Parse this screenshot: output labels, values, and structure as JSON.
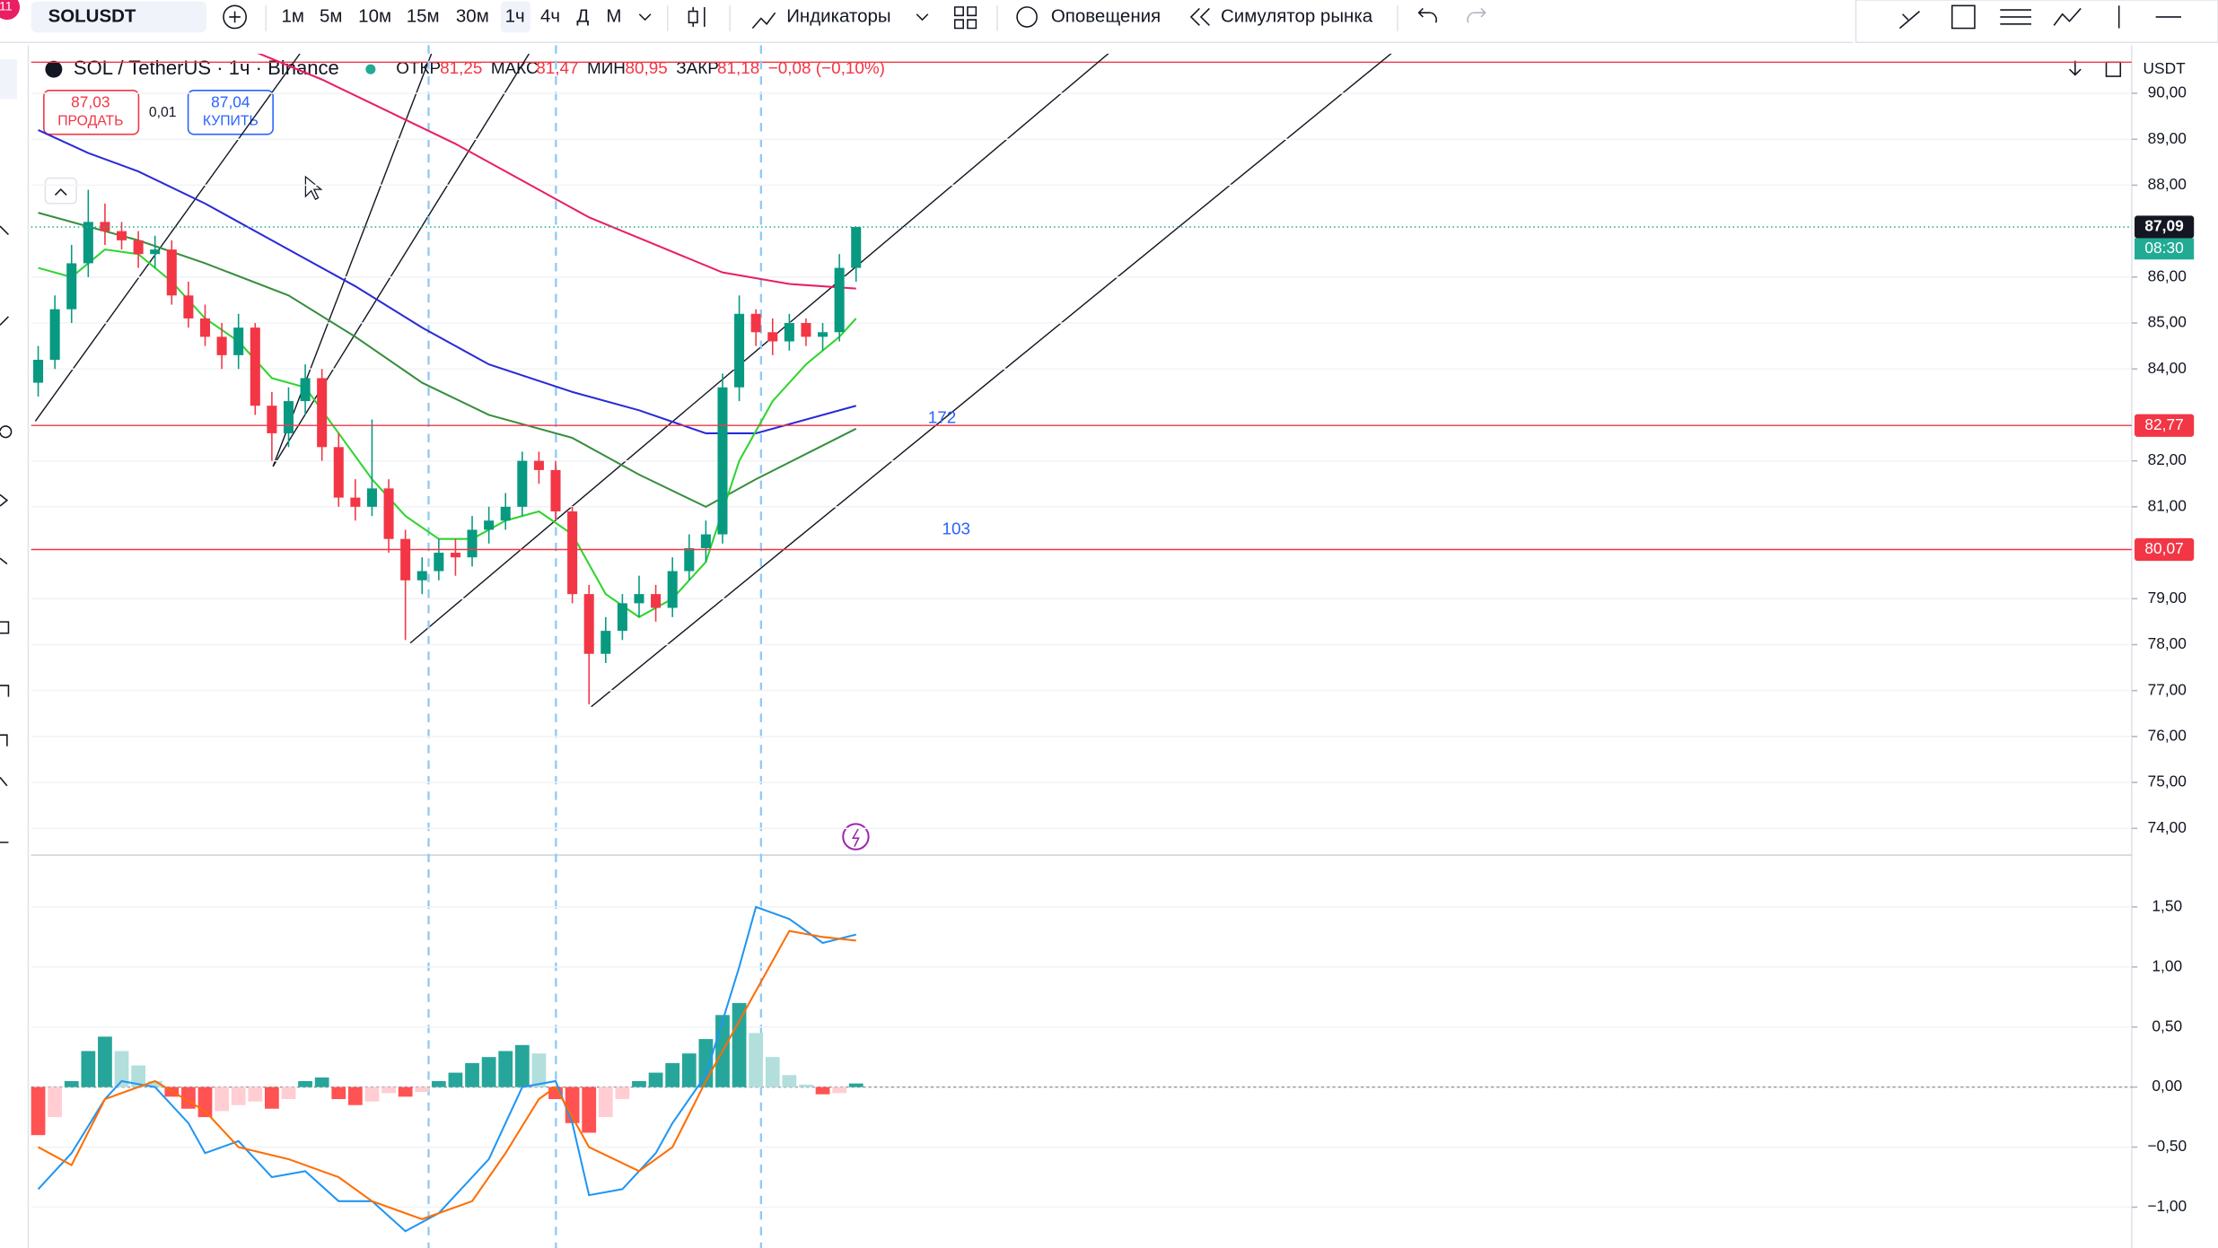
{
  "toolbar": {
    "badge": "11",
    "symbol": "SOLUSDT",
    "intervals": [
      "1м",
      "5м",
      "10м",
      "15м",
      "30м",
      "1ч",
      "4ч",
      "Д",
      "М"
    ],
    "indicators": "Индикаторы",
    "alerts": "Оповещения",
    "replay": "Симулятор рынка"
  },
  "legend": {
    "title": "SOL / TetherUS · 1ч · Binance",
    "fields": [
      {
        "label": "ОТКР",
        "value": "81,25"
      },
      {
        "label": "МАКС",
        "value": "81,47"
      },
      {
        "label": "МИН",
        "value": "80,95"
      },
      {
        "label": "ЗАКР",
        "value": "81,18"
      }
    ],
    "change": "−0,08 (−0,10%)"
  },
  "trade": {
    "sell_price": "87,03",
    "sell": "ПРОДАТЬ",
    "spread": "0,01",
    "buy_price": "87,04",
    "buy": "КУПИТЬ"
  },
  "currency": "USDT",
  "chart_data": [
    {
      "type": "candlestick",
      "up_color": "#089981",
      "down_color": "#f23645",
      "ylim": [
        73.45,
        90.8
      ],
      "yticks": [
        {
          "value": 90,
          "label": "90,00"
        },
        {
          "value": 89,
          "label": "89,00"
        },
        {
          "value": 88,
          "label": "88,00"
        },
        {
          "value": 86,
          "label": "86,00"
        },
        {
          "value": 85,
          "label": "85,00"
        },
        {
          "value": 84,
          "label": "84,00"
        },
        {
          "value": 82,
          "label": "82,00"
        },
        {
          "value": 81,
          "label": "81,00"
        },
        {
          "value": 79,
          "label": "79,00"
        },
        {
          "value": 78,
          "label": "78,00"
        },
        {
          "value": 77,
          "label": "77,00"
        },
        {
          "value": 76,
          "label": "76,00"
        },
        {
          "value": 75,
          "label": "75,00"
        },
        {
          "value": 74,
          "label": "74,00"
        }
      ],
      "open": [
        83.7,
        84.2,
        85.3,
        86.3,
        87.2,
        87.0,
        86.8,
        86.5,
        86.6,
        85.6,
        85.1,
        84.7,
        84.3,
        84.9,
        83.2,
        82.6,
        83.3,
        83.8,
        82.3,
        81.2,
        81.0,
        81.4,
        80.3,
        79.4,
        79.6,
        80.0,
        79.9,
        80.5,
        80.7,
        81.0,
        82.0,
        81.8,
        80.9,
        79.1,
        77.8,
        78.3,
        78.9,
        79.1,
        78.8,
        79.6,
        80.1,
        80.4,
        83.6,
        85.2,
        84.8,
        84.6,
        85.0,
        84.7,
        84.8,
        86.2
      ],
      "high": [
        84.5,
        85.6,
        86.7,
        87.9,
        87.6,
        87.2,
        87.0,
        86.9,
        86.8,
        85.9,
        85.4,
        85.0,
        85.2,
        85.0,
        83.5,
        83.6,
        84.1,
        84.0,
        82.6,
        81.6,
        82.9,
        81.6,
        80.5,
        79.9,
        80.3,
        80.3,
        80.8,
        81.0,
        81.3,
        82.2,
        82.2,
        82.0,
        81.0,
        79.3,
        78.6,
        79.1,
        79.5,
        79.3,
        79.9,
        80.4,
        80.7,
        83.9,
        85.6,
        85.3,
        85.1,
        85.2,
        85.1,
        85.0,
        86.5,
        87.1
      ],
      "low": [
        83.4,
        84.0,
        85.0,
        86.0,
        86.7,
        86.6,
        86.2,
        86.2,
        85.4,
        84.9,
        84.5,
        84.0,
        84.0,
        83.0,
        82.0,
        82.3,
        83.0,
        82.0,
        81.0,
        80.7,
        80.8,
        80.0,
        78.1,
        79.1,
        79.4,
        79.5,
        79.7,
        80.2,
        80.5,
        80.8,
        81.5,
        80.7,
        78.9,
        76.7,
        77.6,
        78.1,
        78.6,
        78.5,
        78.6,
        79.4,
        79.8,
        80.2,
        83.3,
        84.5,
        84.3,
        84.4,
        84.5,
        84.4,
        84.6,
        85.9
      ],
      "close": [
        84.2,
        85.3,
        86.3,
        87.2,
        87.0,
        86.8,
        86.5,
        86.6,
        85.6,
        85.1,
        84.7,
        84.3,
        84.9,
        83.2,
        82.6,
        83.3,
        83.8,
        82.3,
        81.2,
        81.0,
        81.4,
        80.3,
        79.4,
        79.6,
        80.0,
        79.9,
        80.5,
        80.7,
        81.0,
        82.0,
        81.8,
        80.9,
        79.1,
        77.8,
        78.3,
        78.9,
        79.1,
        78.8,
        79.6,
        80.1,
        80.4,
        83.6,
        85.2,
        84.8,
        84.6,
        85.0,
        84.7,
        84.8,
        86.2,
        87.09
      ],
      "moving_averages": [
        {
          "color": "#e91e63",
          "x": [
            13,
            17,
            21,
            25,
            29,
            33,
            37,
            41,
            45,
            49
          ],
          "values": [
            90.9,
            90.3,
            89.6,
            88.9,
            88.1,
            87.3,
            86.7,
            86.1,
            85.85,
            85.75
          ]
        },
        {
          "color": "#2a2ad8",
          "x": [
            0,
            3,
            6,
            10,
            15,
            19,
            23,
            27,
            32,
            36,
            40,
            43,
            49
          ],
          "values": [
            89.2,
            88.7,
            88.3,
            87.6,
            86.6,
            85.8,
            84.9,
            84.1,
            83.5,
            83.1,
            82.6,
            82.6,
            83.2
          ]
        },
        {
          "color": "#388e3c",
          "x": [
            0,
            6,
            10,
            15,
            19,
            23,
            27,
            32,
            36,
            40,
            43,
            49
          ],
          "values": [
            87.4,
            86.8,
            86.3,
            85.6,
            84.7,
            83.7,
            83.0,
            82.5,
            81.7,
            81.0,
            81.6,
            82.7
          ]
        },
        {
          "color": "#2ed52e",
          "x": [
            0,
            2,
            4,
            6,
            8,
            10,
            12,
            14,
            16,
            18,
            20,
            22,
            24,
            26,
            28,
            30,
            32,
            34,
            36,
            38,
            40,
            42,
            44,
            46,
            48,
            49
          ],
          "values": [
            86.2,
            86.0,
            86.6,
            86.5,
            85.9,
            85.1,
            84.6,
            83.8,
            83.6,
            82.6,
            81.6,
            80.8,
            80.3,
            80.3,
            80.7,
            80.9,
            80.4,
            79.1,
            78.6,
            79.0,
            79.8,
            82.0,
            83.3,
            84.1,
            84.7,
            85.1
          ]
        }
      ],
      "price_lines": [
        {
          "value": 82.77,
          "label": "82,77",
          "color": "#f23645"
        },
        {
          "value": 80.07,
          "label": "80,07",
          "color": "#f23645"
        }
      ],
      "last_price": {
        "value": 87.09,
        "label": "87,09",
        "countdown": "08:30",
        "color": "#22ab94"
      },
      "annotations": [
        "172",
        "103"
      ]
    },
    {
      "type": "macd",
      "ylim": [
        -1.34,
        1.92
      ],
      "yticks": [
        {
          "value": 1.5,
          "label": "1,50"
        },
        {
          "value": 1,
          "label": "1,00"
        },
        {
          "value": 0.5,
          "label": "0,50"
        },
        {
          "value": 0,
          "label": "0,00"
        },
        {
          "value": -0.5,
          "label": "−0,50"
        },
        {
          "value": -1,
          "label": "−1,00"
        }
      ],
      "histogram": [
        -0.4,
        -0.25,
        0.05,
        0.3,
        0.42,
        0.3,
        0.18,
        0.05,
        -0.08,
        -0.18,
        -0.25,
        -0.2,
        -0.15,
        -0.12,
        -0.18,
        -0.1,
        0.05,
        0.08,
        -0.1,
        -0.15,
        -0.12,
        -0.05,
        -0.08,
        -0.04,
        0.05,
        0.12,
        0.2,
        0.25,
        0.3,
        0.35,
        0.28,
        -0.1,
        -0.3,
        -0.38,
        -0.25,
        -0.1,
        0.05,
        0.12,
        0.2,
        0.28,
        0.4,
        0.6,
        0.7,
        0.45,
        0.25,
        0.1,
        0.02,
        -0.06,
        -0.05,
        0.03
      ],
      "histogram_colors": [
        "#26a69a",
        "#b2dfdb",
        "#ff5252",
        "#ffcdd2"
      ],
      "series": [
        {
          "color": "#2196f3",
          "x": [
            0,
            2,
            4,
            5,
            7,
            9,
            10,
            12,
            14,
            16,
            18,
            20,
            22,
            24,
            27,
            29,
            31,
            32,
            33,
            35,
            37,
            38,
            40,
            42,
            43,
            45,
            47,
            49
          ],
          "values": [
            -0.85,
            -0.55,
            -0.1,
            0.05,
            0.0,
            -0.3,
            -0.55,
            -0.45,
            -0.75,
            -0.7,
            -0.95,
            -0.95,
            -1.2,
            -1.05,
            -0.6,
            0.0,
            0.05,
            -0.3,
            -0.9,
            -0.85,
            -0.55,
            -0.3,
            0.1,
            1.0,
            1.5,
            1.4,
            1.2,
            1.27
          ]
        },
        {
          "color": "#ff6d00",
          "x": [
            0,
            2,
            4,
            7,
            10,
            12,
            15,
            18,
            20,
            23,
            26,
            28,
            30,
            31,
            33,
            36,
            38,
            40,
            43,
            45,
            47,
            49
          ],
          "values": [
            -0.5,
            -0.65,
            -0.1,
            0.05,
            -0.2,
            -0.5,
            -0.6,
            -0.75,
            -0.95,
            -1.1,
            -0.95,
            -0.55,
            -0.1,
            0.0,
            -0.5,
            -0.7,
            -0.5,
            0.05,
            0.8,
            1.3,
            1.25,
            1.22
          ]
        }
      ]
    }
  ]
}
